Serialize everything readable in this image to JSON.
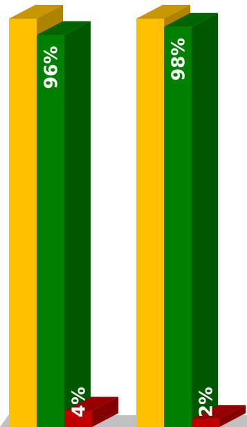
{
  "chart_data": {
    "type": "bar",
    "style": "3d-clustered-column",
    "title": "",
    "xlabel": "",
    "ylabel": "",
    "grid": false,
    "legend": "none",
    "groups": [
      {
        "bars": [
          {
            "color": "#ffc000",
            "value": 100,
            "label": ""
          },
          {
            "color": "#008000",
            "value": 96,
            "label": "96%"
          },
          {
            "color": "#c00000",
            "value": 4,
            "label": "4%"
          }
        ]
      },
      {
        "bars": [
          {
            "color": "#ffc000",
            "value": 100,
            "label": ""
          },
          {
            "color": "#008000",
            "value": 98,
            "label": "98%"
          },
          {
            "color": "#c00000",
            "value": 2,
            "label": "2%"
          }
        ]
      }
    ]
  }
}
